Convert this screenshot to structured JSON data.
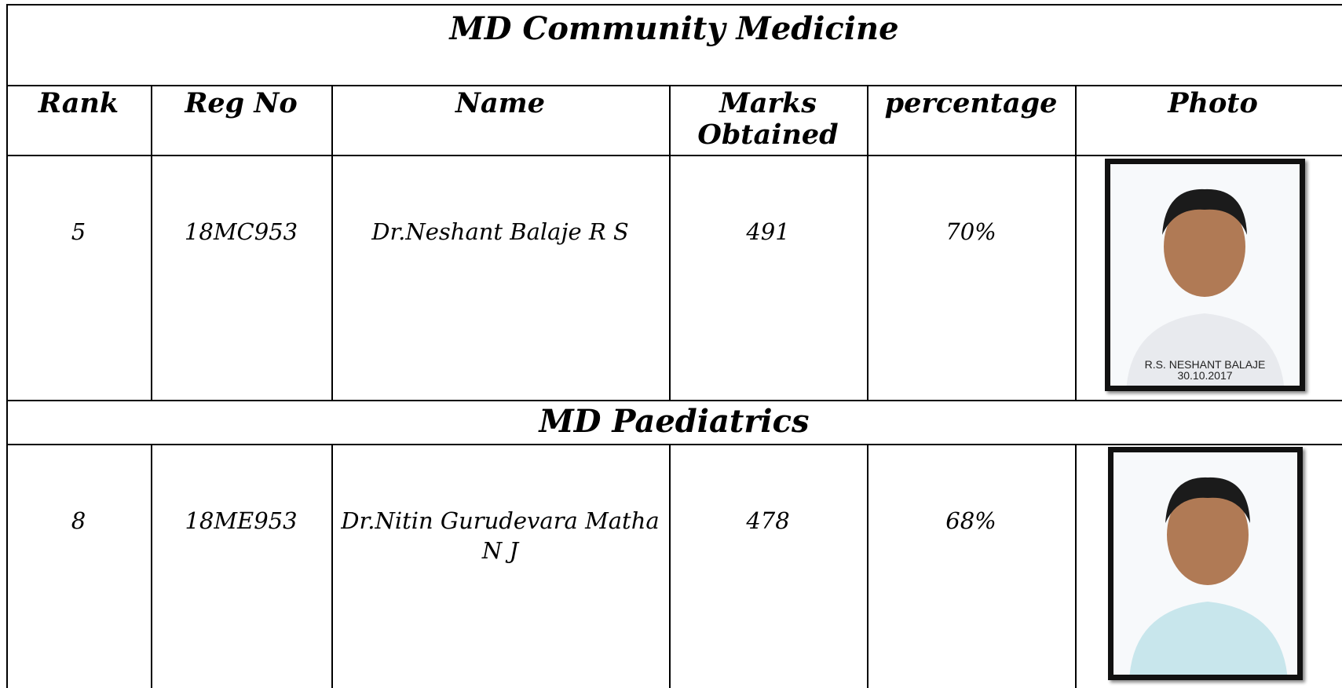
{
  "header": {
    "columns": [
      "Rank",
      "Reg No",
      "Name",
      "Marks Obtained",
      "percentage",
      "Photo"
    ]
  },
  "sections": [
    {
      "title": "MD Community Medicine",
      "rows": [
        {
          "rank": "5",
          "reg_no": "18MC953",
          "name": "Dr.Neshant Balaje R S",
          "marks": "491",
          "percentage": "70%",
          "photo": {
            "caption": "R.S. NESHANT BALAJE",
            "date": "30.10.2017"
          }
        }
      ]
    },
    {
      "title": "MD Paediatrics",
      "rows": [
        {
          "rank": "8",
          "reg_no": "18ME953",
          "name": "Dr.Nitin Gurudevara Matha N J",
          "marks": "478",
          "percentage": "68%",
          "photo": {}
        }
      ]
    }
  ]
}
